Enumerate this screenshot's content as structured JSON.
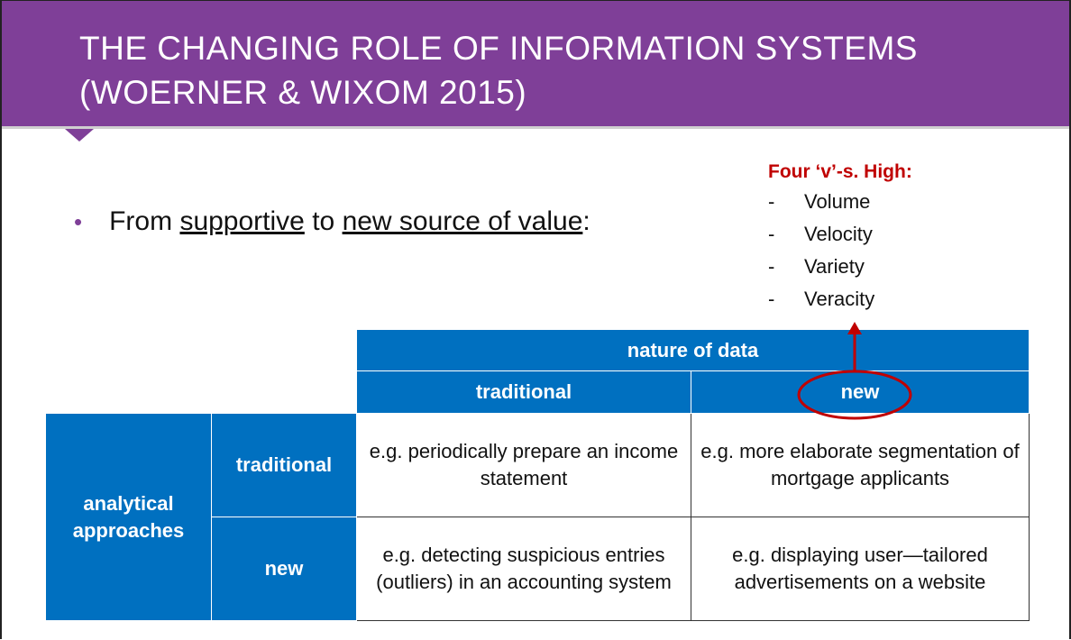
{
  "title": {
    "line1": "THE CHANGING ROLE OF INFORMATION SYSTEMS",
    "line2": "(WOERNER & WIXOM 2015)"
  },
  "bullet": {
    "prefix": "From ",
    "term1": "supportive",
    "middle": " to ",
    "term2": "new source of value",
    "suffix": ":"
  },
  "four_v": {
    "title": "Four ‘v’-s. High:",
    "dash": "-",
    "items": [
      "Volume",
      "Velocity",
      "Variety",
      "Veracity"
    ]
  },
  "table": {
    "col_group_header": "nature of data",
    "col_headers": [
      "traditional",
      "new"
    ],
    "row_group_header_line1": "analytical",
    "row_group_header_line2": "approaches",
    "row_headers": [
      "traditional",
      "new"
    ],
    "cells": [
      [
        "e.g. periodically prepare an income statement",
        "e.g. more elaborate segmentation of mortgage applicants"
      ],
      [
        "e.g. detecting suspicious entries (outliers) in an accounting system",
        "e.g. displaying user—tailored advertisements on a website"
      ]
    ]
  },
  "colors": {
    "title_bg": "#7f3f98",
    "table_header": "#0070c0",
    "highlight": "#c00000"
  }
}
